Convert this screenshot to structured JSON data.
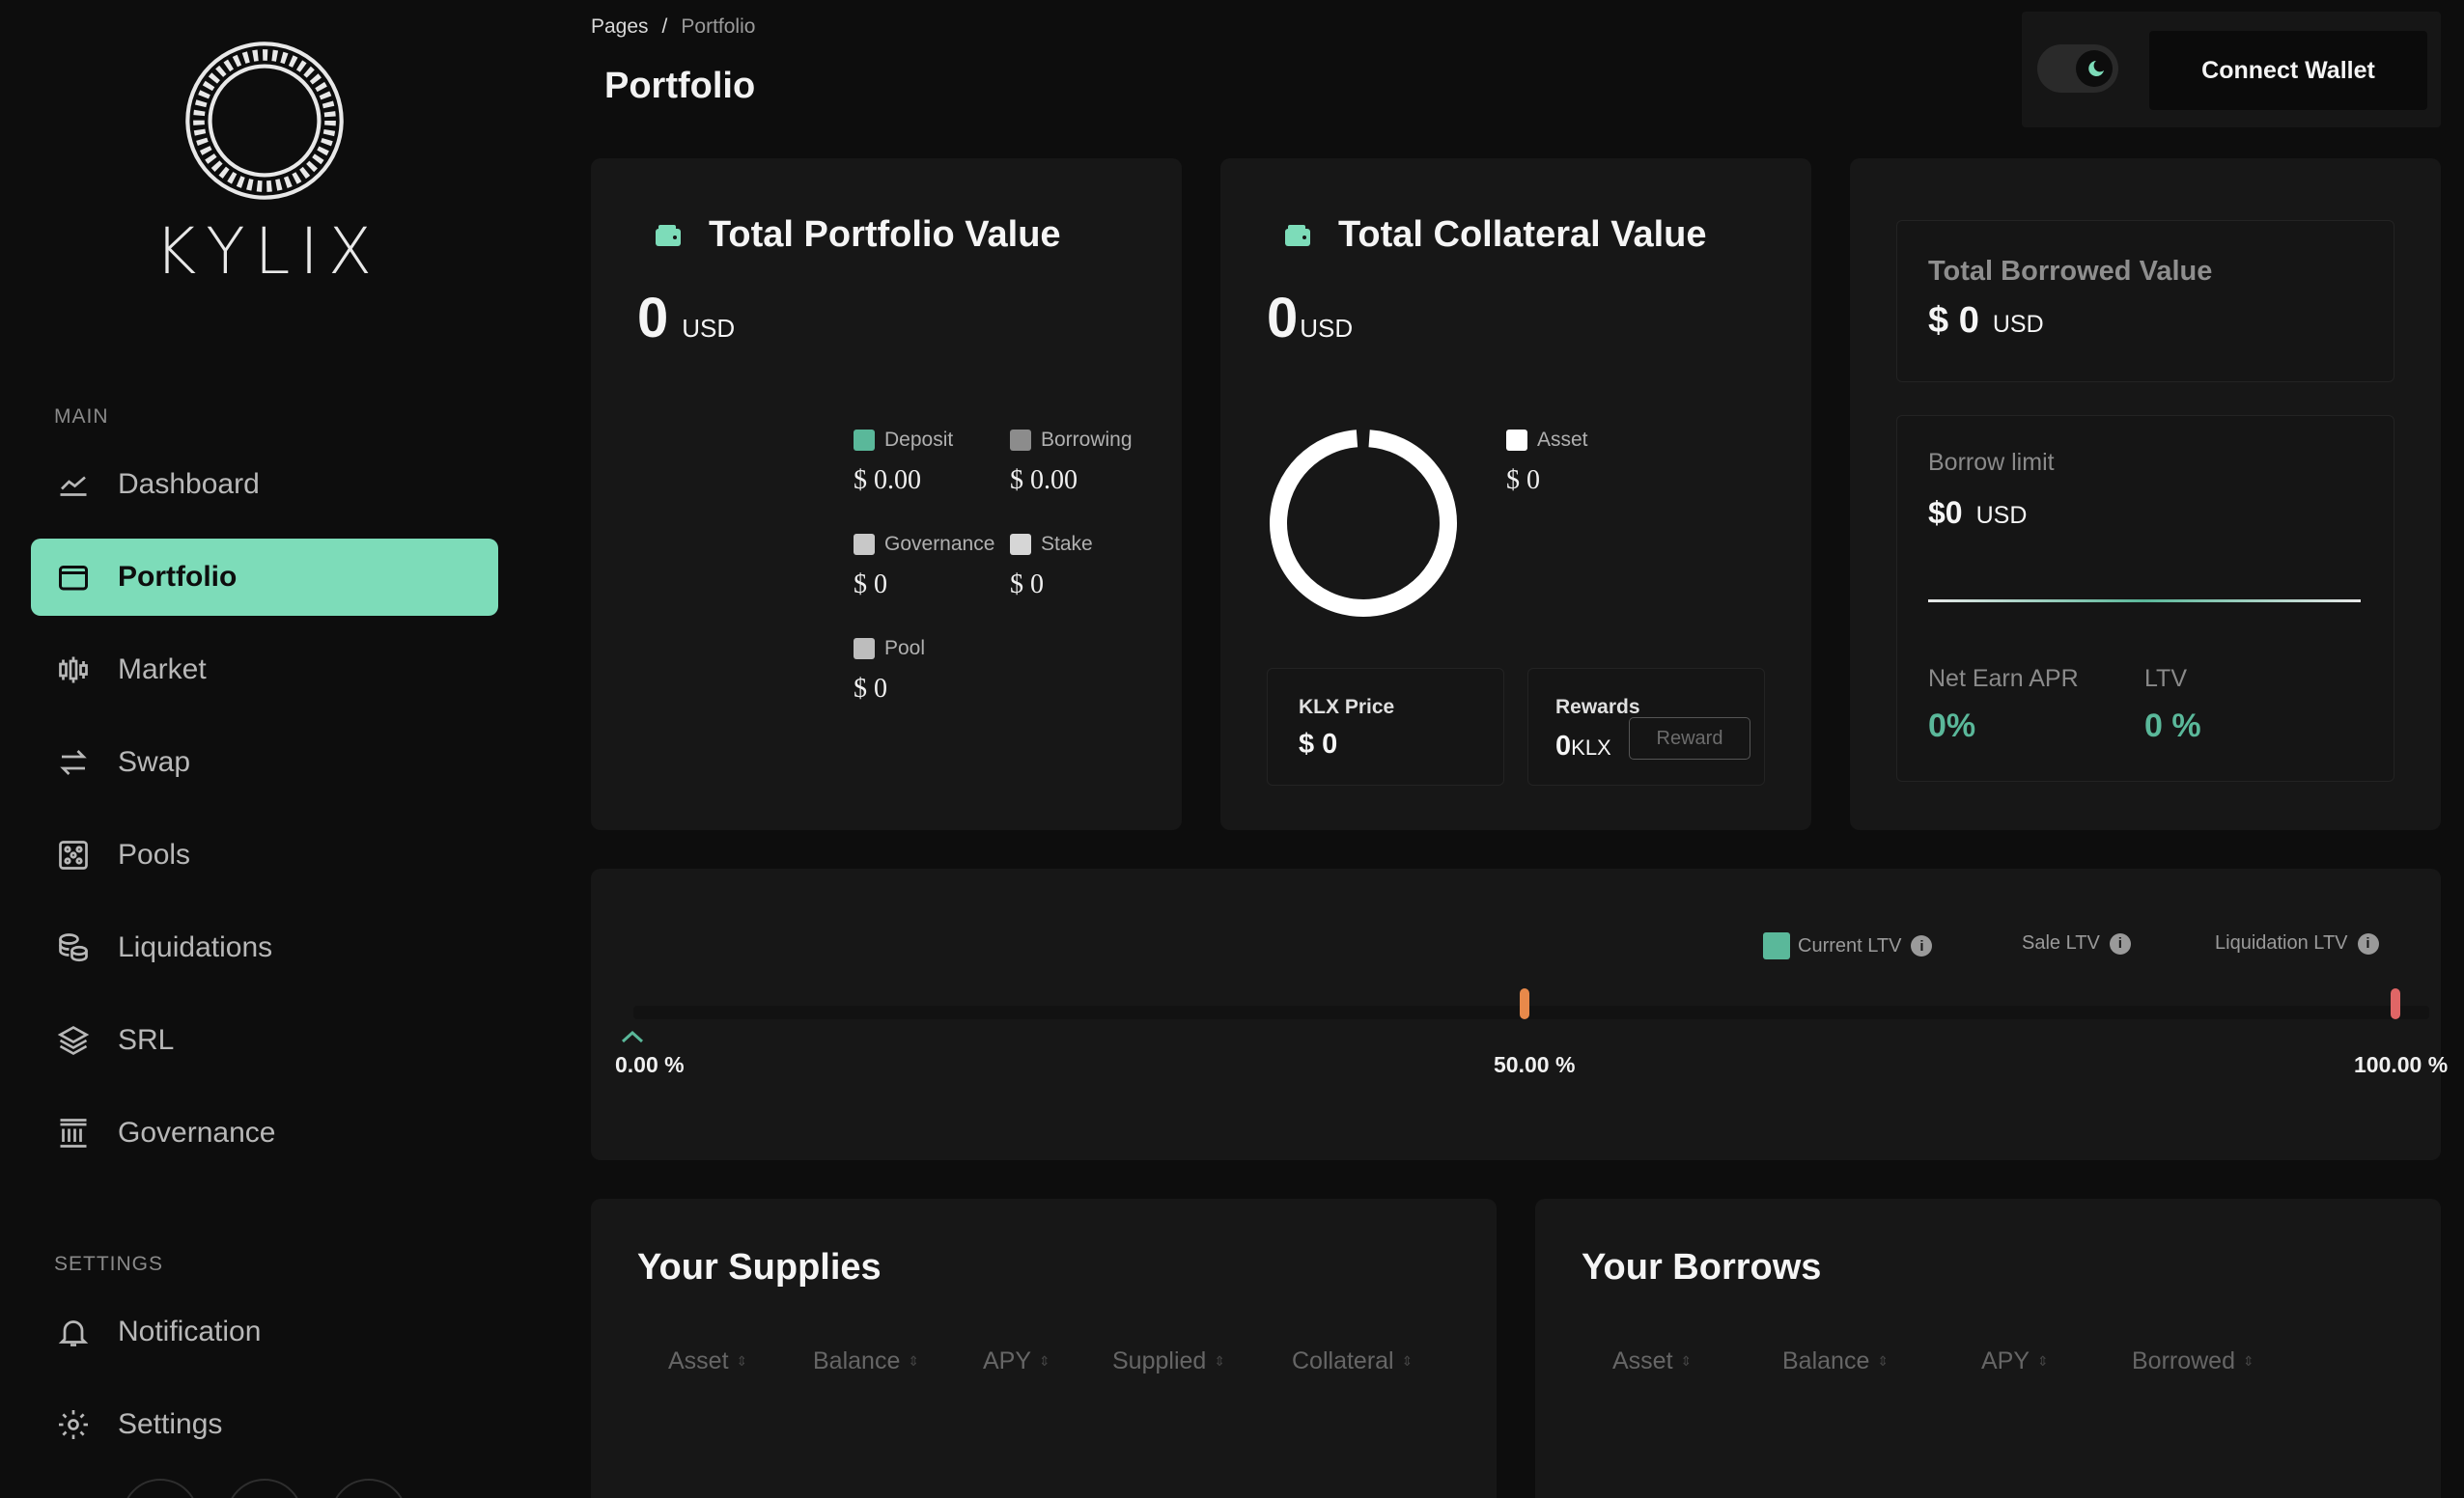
{
  "sidebar": {
    "brand": "KYLIX",
    "main_heading": "MAIN",
    "items": [
      {
        "label": "Dashboard",
        "icon": "chart-line-icon"
      },
      {
        "label": "Portfolio",
        "icon": "wallet-icon"
      },
      {
        "label": "Market",
        "icon": "candlestick-icon"
      },
      {
        "label": "Swap",
        "icon": "swap-arrows-icon"
      },
      {
        "label": "Pools",
        "icon": "pools-icon"
      },
      {
        "label": "Liquidations",
        "icon": "coins-icon"
      },
      {
        "label": "SRL",
        "icon": "layers-icon"
      },
      {
        "label": "Governance",
        "icon": "bank-icon"
      }
    ],
    "settings_heading": "SETTINGS",
    "settings_items": [
      {
        "label": "Notification",
        "icon": "bell-icon"
      },
      {
        "label": "Settings",
        "icon": "gear-icon"
      }
    ],
    "active": "Portfolio"
  },
  "header": {
    "breadcrumb": {
      "root": "Pages",
      "separator": "/",
      "current": "Portfolio"
    },
    "title": "Portfolio",
    "connect_label": "Connect Wallet"
  },
  "portfolio_card": {
    "title": "Total Portfolio Value",
    "value": "0",
    "unit": "USD",
    "legend": [
      {
        "label": "Deposit",
        "value": "$ 0.00",
        "color": "#5ab89a"
      },
      {
        "label": "Borrowing",
        "value": "$ 0.00",
        "color": "#8c8c8c"
      },
      {
        "label": "Governance",
        "value": "$ 0",
        "color": "#c8c8c8"
      },
      {
        "label": "Stake",
        "value": "$ 0",
        "color": "#d6d6d6"
      },
      {
        "label": "Pool",
        "value": "$ 0",
        "color": "#bdbdbd"
      }
    ]
  },
  "collateral_card": {
    "title": "Total Collateral Value",
    "value": "0",
    "unit": "USD",
    "legend": {
      "label": "Asset",
      "value": "$ 0",
      "color": "#ffffff"
    },
    "klx_price_label": "KLX Price",
    "klx_price_value": "$ 0",
    "rewards_label": "Rewards",
    "rewards_value": "0",
    "rewards_unit": "KLX",
    "reward_button": "Reward"
  },
  "borrowed_card": {
    "title": "Total Borrowed Value",
    "currency": "$",
    "value": "0",
    "unit": "USD",
    "borrow_limit_label": "Borrow limit",
    "borrow_limit_value": "$0",
    "borrow_limit_unit": "USD",
    "net_apr_label": "Net Earn APR",
    "net_apr_value": "0%",
    "ltv_label": "LTV",
    "ltv_value": "0 %"
  },
  "ltv_bar": {
    "legend": [
      {
        "label": "Current LTV",
        "color": "#5ab89a"
      },
      {
        "label": "Sale LTV"
      },
      {
        "label": "Liquidation LTV"
      }
    ],
    "ticks": [
      "0.00 %",
      "50.00 %",
      "100.00 %"
    ],
    "current_ltv": 0,
    "sale_ltv": 50,
    "liquidation_ltv": 100,
    "sale_color": "#e8894a",
    "liquidation_color": "#e06666"
  },
  "supplies": {
    "title": "Your Supplies",
    "columns": [
      "Asset",
      "Balance",
      "APY",
      "Supplied",
      "Collateral"
    ]
  },
  "borrows": {
    "title": "Your Borrows",
    "columns": [
      "Asset",
      "Balance",
      "APY",
      "Borrowed"
    ]
  }
}
